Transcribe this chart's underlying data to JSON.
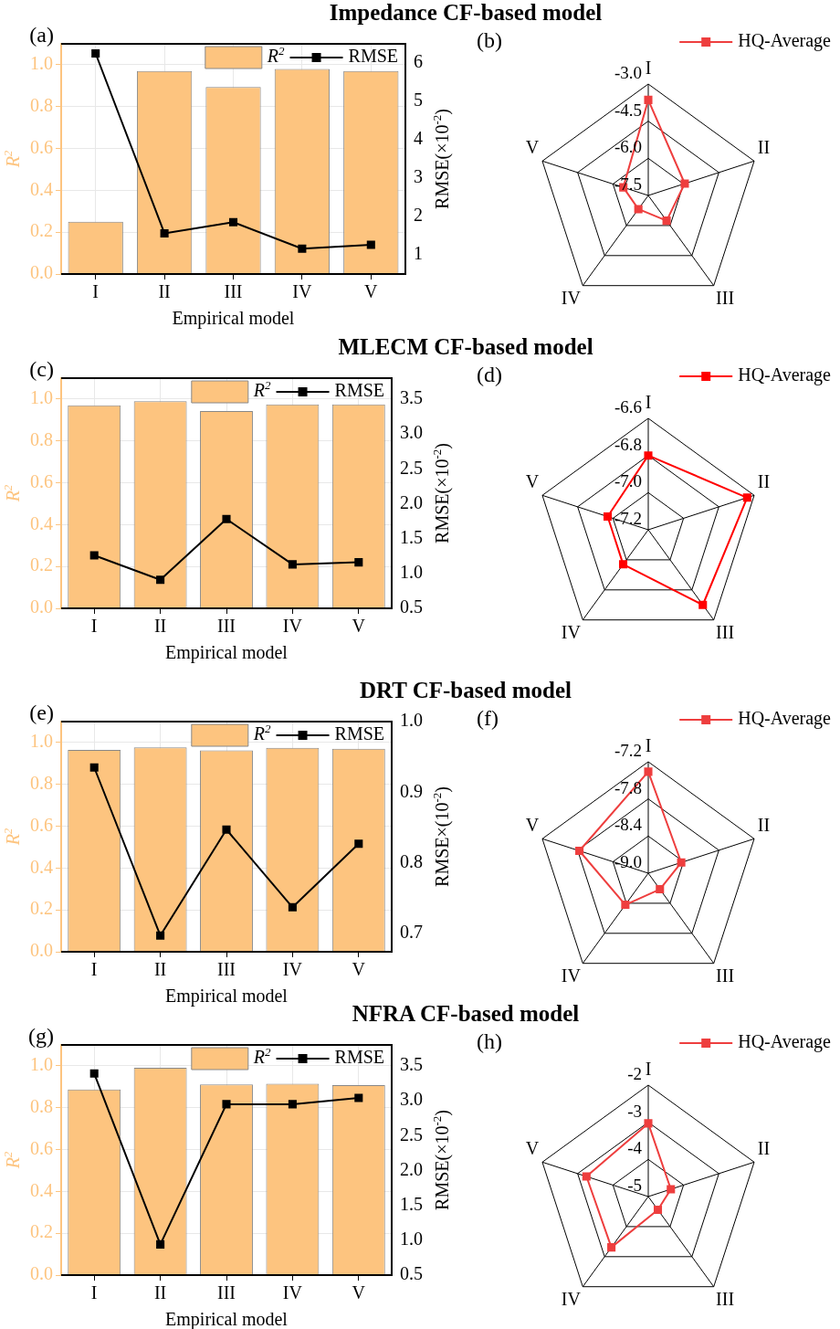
{
  "chart_data": [
    {
      "type": "bar",
      "title": "Impedance CF-based model",
      "xlabel": "Empirical model",
      "ylabel": "R$^{2}$",
      "y2label": "RMSE(×10$^{-2}$)",
      "annotations": [
        "(a)"
      ],
      "categories": [
        "I",
        "II",
        "III",
        "IV",
        "V"
      ],
      "series": [
        {
          "name": "R$^{2}$",
          "color": "#fdc47f",
          "values": [
            0.25,
            0.97,
            0.894,
            0.98,
            0.97
          ]
        },
        {
          "name": "RMSE",
          "type": "line",
          "axis": "y2",
          "color": "#000000",
          "values": [
            6.25,
            1.56,
            1.85,
            1.16,
            1.26
          ]
        }
      ],
      "ylim": [
        0,
        1.1
      ],
      "yticks": [
        {
          "value": 0,
          "label": "0.0"
        },
        0.2,
        0.4,
        0.6,
        0.8,
        {
          "value": 1,
          "label": "1.0"
        }
      ],
      "y2lim": [
        0.5,
        6.5
      ],
      "y2ticks": [
        1,
        2,
        3,
        4,
        5,
        6
      ],
      "grid": true,
      "legend": "top right",
      "marker": "square"
    },
    {
      "type": "radar",
      "annotations": [
        "(b)"
      ],
      "categories": [
        "I",
        "II",
        "III",
        "IV",
        "V"
      ],
      "series": [
        {
          "name": "HQ-Average",
          "color": "#ee3e3e",
          "values": [
            -3.64,
            -5.95,
            -6.24,
            -6.82,
            -6.44
          ]
        }
      ],
      "ylim": [
        -7.5,
        -3.0
      ],
      "yticks": [
        {
          "value": -7.5,
          "label": "-7.5"
        },
        {
          "value": -6,
          "label": "-6.0"
        },
        {
          "value": -4.5,
          "label": "-4.5"
        },
        {
          "value": -3,
          "label": "-3.0"
        }
      ],
      "grid": true,
      "legend": "top right",
      "marker": "square"
    },
    {
      "type": "bar",
      "title": "MLECM CF-based model",
      "xlabel": "Empirical model",
      "ylabel": "R$^{2}$",
      "y2label": "RMSE(×10$^{-2}$)",
      "annotations": [
        "(c)"
      ],
      "categories": [
        "I",
        "II",
        "III",
        "IV",
        "V"
      ],
      "series": [
        {
          "name": "R$^{2}$",
          "color": "#fdc47f",
          "values": [
            0.97,
            0.99,
            0.943,
            0.975,
            0.975
          ]
        },
        {
          "name": "RMSE",
          "type": "line",
          "axis": "y2",
          "color": "#000000",
          "values": [
            1.26,
            0.91,
            1.78,
            1.13,
            1.16
          ]
        }
      ],
      "ylim": [
        0,
        1.1
      ],
      "yticks": [
        {
          "value": 0,
          "label": "0.0"
        },
        0.2,
        0.4,
        0.6,
        0.8,
        {
          "value": 1,
          "label": "1.0"
        }
      ],
      "y2lim": [
        0.5,
        3.8
      ],
      "y2ticks": [
        0.5,
        {
          "value": 1,
          "label": "1.0"
        },
        1.5,
        {
          "value": 2,
          "label": "2.0"
        },
        2.5,
        {
          "value": 3,
          "label": "3.0"
        },
        3.5
      ],
      "grid": true,
      "legend": "top right",
      "marker": "square"
    },
    {
      "type": "radar",
      "annotations": [
        "(d)"
      ],
      "categories": [
        "I",
        "II",
        "III",
        "IV",
        "V"
      ],
      "series": [
        {
          "name": "HQ-Average",
          "color": "#ff0000",
          "values": [
            -6.8,
            -6.64,
            -6.7,
            -6.97,
            -6.97
          ]
        }
      ],
      "ylim": [
        -7.2,
        -6.6
      ],
      "yticks": [
        -7.2,
        {
          "value": -7,
          "label": "-7.0"
        },
        -6.8,
        -6.6
      ],
      "grid": true,
      "legend": "top right",
      "marker": "square"
    },
    {
      "type": "bar",
      "title": "DRT CF-based model",
      "xlabel": "Empirical model",
      "ylabel": "R$^{2}$",
      "y2label": "RMSE×(10$^{-2}$)",
      "annotations": [
        "(e)"
      ],
      "categories": [
        "I",
        "II",
        "III",
        "IV",
        "V"
      ],
      "series": [
        {
          "name": "R$^{2}$",
          "color": "#fdc47f",
          "values": [
            0.965,
            0.977,
            0.963,
            0.975,
            0.97
          ]
        },
        {
          "name": "RMSE",
          "type": "line",
          "axis": "y2",
          "color": "#000000",
          "values": [
            0.935,
            0.697,
            0.847,
            0.737,
            0.827
          ]
        }
      ],
      "ylim": [
        0,
        1.1
      ],
      "yticks": [
        {
          "value": 0,
          "label": "0.0"
        },
        0.2,
        0.4,
        0.6,
        0.8,
        {
          "value": 1,
          "label": "1.0"
        }
      ],
      "y2lim": [
        0.674,
        1.0
      ],
      "y2ticks": [
        0.7,
        0.8,
        0.9,
        {
          "value": 1,
          "label": "1.0"
        }
      ],
      "grid": true,
      "legend": "top right",
      "marker": "square"
    },
    {
      "type": "radar",
      "annotations": [
        "(f)"
      ],
      "categories": [
        "I",
        "II",
        "III",
        "IV",
        "V"
      ],
      "series": [
        {
          "name": "HQ-Average",
          "color": "#ee3e3e",
          "values": [
            -7.36,
            -8.44,
            -8.68,
            -8.37,
            -7.83
          ]
        }
      ],
      "ylim": [
        -9.0,
        -7.2
      ],
      "yticks": [
        {
          "value": -9,
          "label": "-9.0"
        },
        -8.4,
        -7.8,
        -7.2
      ],
      "grid": true,
      "legend": "top right",
      "marker": "square"
    },
    {
      "type": "bar",
      "title": "NFRA CF-based model",
      "xlabel": "Empirical model",
      "ylabel": "R$^{2}$",
      "y2label": "RMSE(×10$^{-2}$)",
      "annotations": [
        "(g)"
      ],
      "categories": [
        "I",
        "II",
        "III",
        "IV",
        "V"
      ],
      "series": [
        {
          "name": "R$^{2}$",
          "color": "#fdc47f",
          "values": [
            0.887,
            0.991,
            0.911,
            0.914,
            0.908
          ]
        },
        {
          "name": "RMSE",
          "type": "line",
          "axis": "y2",
          "color": "#000000",
          "values": [
            3.39,
            0.94,
            2.95,
            2.95,
            3.04
          ]
        }
      ],
      "ylim": [
        0,
        1.1
      ],
      "yticks": [
        {
          "value": 0,
          "label": "0.0"
        },
        0.2,
        0.4,
        0.6,
        0.8,
        {
          "value": 1,
          "label": "1.0"
        }
      ],
      "y2lim": [
        0.5,
        3.8
      ],
      "y2ticks": [
        0.5,
        {
          "value": 1,
          "label": "1.0"
        },
        1.5,
        {
          "value": 2,
          "label": "2.0"
        },
        2.5,
        {
          "value": 3,
          "label": "3.0"
        },
        3.5
      ],
      "grid": true,
      "legend": "top right",
      "marker": "square"
    },
    {
      "type": "radar",
      "annotations": [
        "(h)"
      ],
      "categories": [
        "I",
        "II",
        "III",
        "IV",
        "V"
      ],
      "series": [
        {
          "name": "HQ-Average",
          "color": "#ee3e3e",
          "values": [
            -3.03,
            -4.36,
            -4.56,
            -3.31,
            -3.25
          ]
        }
      ],
      "ylim": [
        -5,
        -2
      ],
      "yticks": [
        -5,
        -4,
        -3,
        -2
      ],
      "grid": true,
      "legend": "top right",
      "marker": "square"
    }
  ]
}
